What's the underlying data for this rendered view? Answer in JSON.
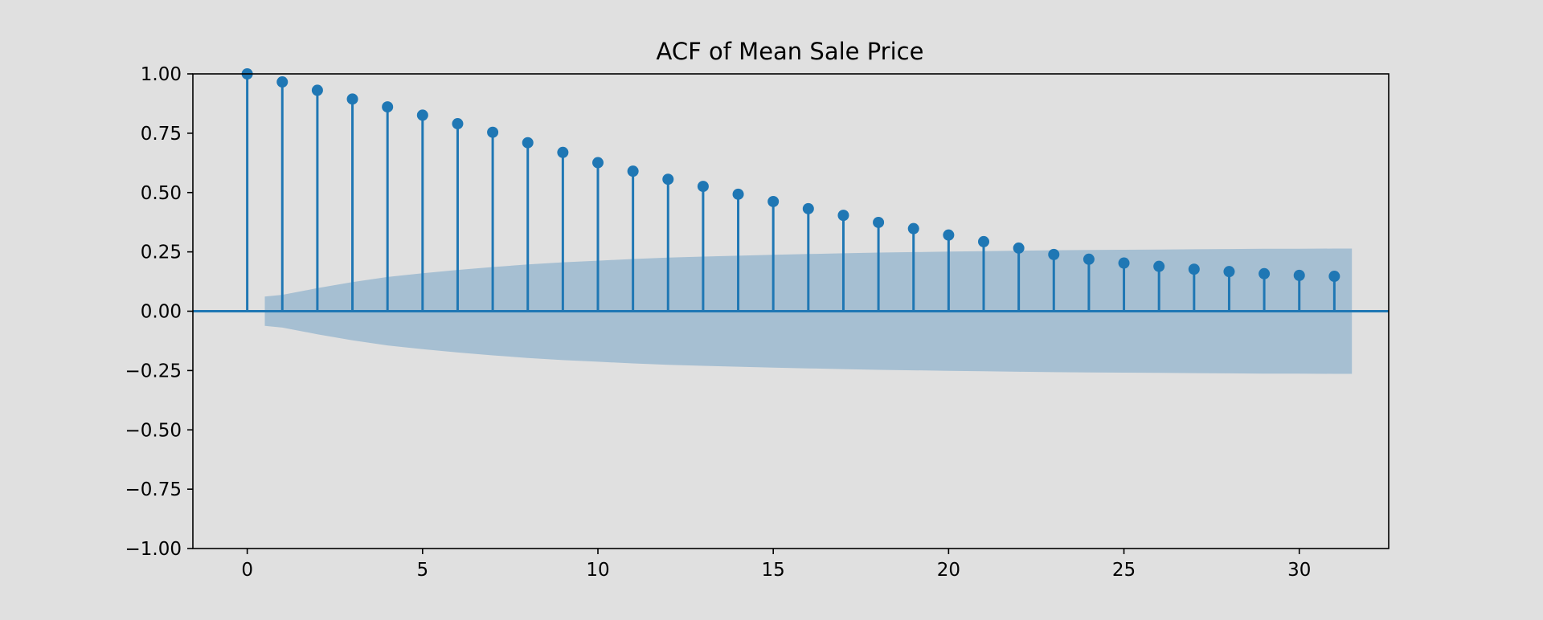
{
  "chart_data": {
    "type": "stem",
    "title": "ACF of Mean Sale Price",
    "xlabel": "",
    "ylabel": "",
    "xlim": [
      -1.55,
      32.55
    ],
    "ylim": [
      -1.0,
      1.0
    ],
    "xticks": [
      0,
      5,
      10,
      15,
      20,
      25,
      30
    ],
    "xtick_labels": [
      "0",
      "5",
      "10",
      "15",
      "20",
      "25",
      "30"
    ],
    "yticks": [
      1.0,
      0.75,
      0.5,
      0.25,
      0.0,
      -0.25,
      -0.5,
      -0.75,
      -1.0
    ],
    "ytick_labels": [
      "1.00",
      "0.75",
      "0.50",
      "0.25",
      "0.00",
      "−0.25",
      "−0.50",
      "−0.75",
      "−1.00"
    ],
    "grid": false,
    "legend": "none",
    "series": [
      {
        "lags": [
          0,
          1,
          2,
          3,
          4,
          5,
          6,
          7,
          8,
          9,
          10,
          11,
          12,
          13,
          14,
          15,
          16,
          17,
          18,
          19,
          20,
          21,
          22,
          23,
          24,
          25,
          26,
          27,
          28,
          29,
          30,
          31
        ],
        "values": [
          1.0,
          0.966,
          0.931,
          0.894,
          0.861,
          0.826,
          0.79,
          0.754,
          0.71,
          0.669,
          0.626,
          0.59,
          0.556,
          0.526,
          0.493,
          0.462,
          0.432,
          0.404,
          0.374,
          0.348,
          0.321,
          0.293,
          0.266,
          0.239,
          0.219,
          0.203,
          0.189,
          0.177,
          0.167,
          0.158,
          0.151,
          0.147
        ]
      }
    ],
    "confidence_band": {
      "x_start": 0.5,
      "x_end": 31.5,
      "lags": [
        0.5,
        1,
        2,
        3,
        4,
        5,
        6,
        7,
        8,
        9,
        10,
        11,
        12,
        13,
        14,
        15,
        16,
        17,
        18,
        19,
        20,
        21,
        22,
        23,
        24,
        25,
        26,
        27,
        28,
        29,
        30,
        31,
        31.5
      ],
      "upper": [
        0.062,
        0.069,
        0.097,
        0.123,
        0.144,
        0.16,
        0.174,
        0.186,
        0.197,
        0.206,
        0.213,
        0.22,
        0.226,
        0.23,
        0.234,
        0.238,
        0.241,
        0.244,
        0.247,
        0.249,
        0.251,
        0.253,
        0.255,
        0.257,
        0.258,
        0.259,
        0.26,
        0.261,
        0.262,
        0.263,
        0.263,
        0.264,
        0.264
      ]
    },
    "colors": {
      "stem": "#1f77b4",
      "band": "#a6bfd2",
      "baseline": "#1f77b4",
      "axes_bg": "#e0e0e0",
      "frame": "#000000"
    }
  }
}
